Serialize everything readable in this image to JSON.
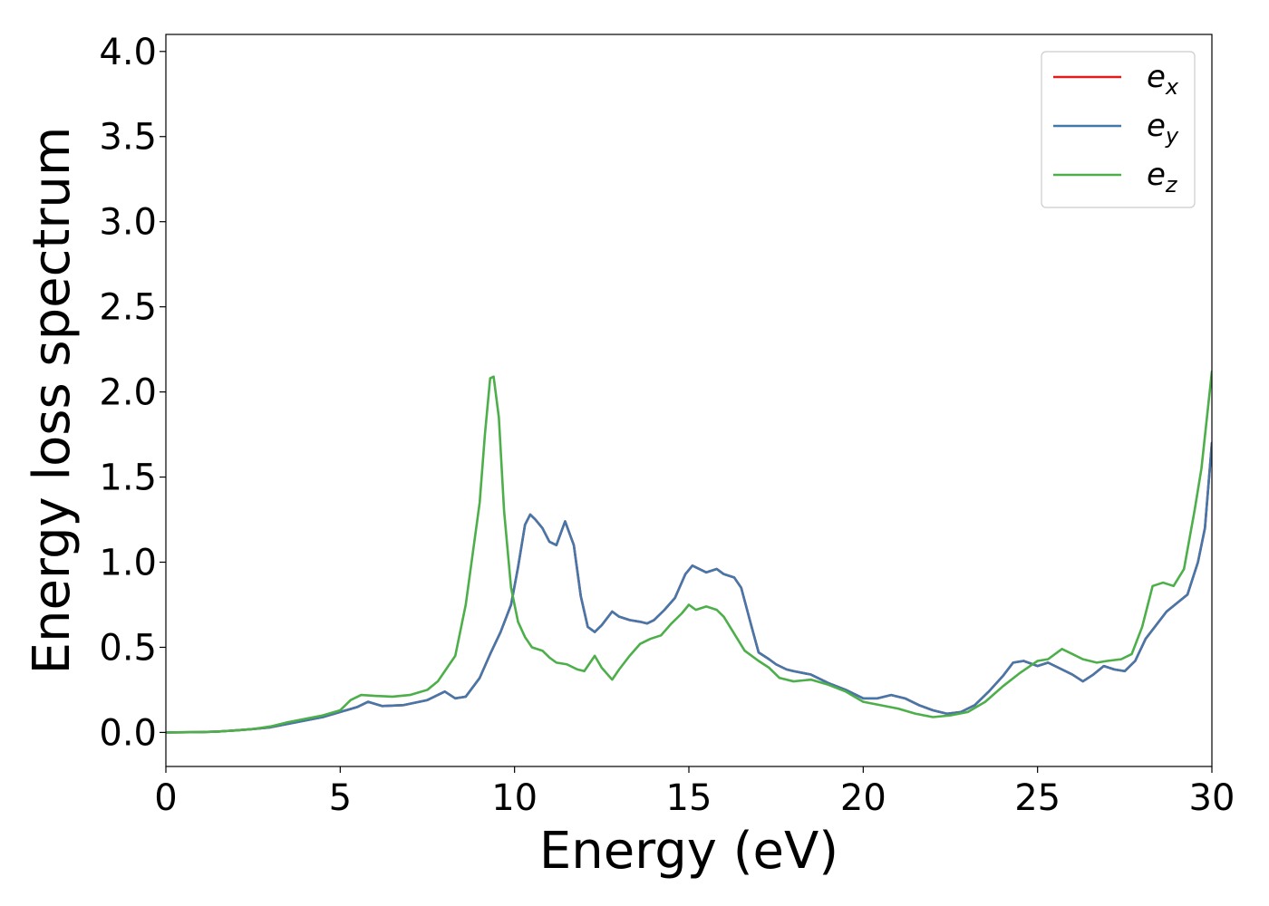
{
  "chart_data": {
    "type": "line",
    "title": "",
    "xlabel": "Energy (eV)",
    "ylabel": "Energy loss spectrum",
    "xlim": [
      0,
      30
    ],
    "ylim": [
      -0.2,
      4.1
    ],
    "xticks": [
      0,
      5,
      10,
      15,
      20,
      25,
      30
    ],
    "xtick_labels": [
      "0",
      "5",
      "10",
      "15",
      "20",
      "25",
      "30"
    ],
    "yticks": [
      0.0,
      0.5,
      1.0,
      1.5,
      2.0,
      2.5,
      3.0,
      3.5,
      4.0
    ],
    "ytick_labels": [
      "0.0",
      "0.5",
      "1.0",
      "1.5",
      "2.0",
      "2.5",
      "3.0",
      "3.5",
      "4.0"
    ],
    "grid": false,
    "legend": {
      "placement": "top-right"
    },
    "series": [
      {
        "name": "e_x",
        "label_base": "e",
        "label_sub": "x",
        "color": "#e41a1c",
        "x": [
          0,
          1,
          1.5,
          2,
          2.5,
          3,
          3.5,
          4,
          4.5,
          5,
          5.5,
          5.8,
          6.2,
          6.8,
          7.5,
          8,
          8.3,
          8.6,
          9,
          9.3,
          9.6,
          9.9,
          10.1,
          10.3,
          10.45,
          10.6,
          10.8,
          11,
          11.2,
          11.45,
          11.7,
          11.9,
          12.1,
          12.3,
          12.5,
          12.8,
          13,
          13.3,
          13.6,
          13.8,
          14,
          14.3,
          14.6,
          14.9,
          15.1,
          15.3,
          15.5,
          15.8,
          16,
          16.3,
          16.5,
          16.8,
          17,
          17.3,
          17.5,
          17.8,
          18,
          18.5,
          19,
          19.5,
          20,
          20.4,
          20.8,
          21.2,
          21.6,
          22,
          22.4,
          22.8,
          23.2,
          23.6,
          24,
          24.3,
          24.6,
          25,
          25.3,
          25.6,
          26,
          26.3,
          26.6,
          26.9,
          27.2,
          27.5,
          27.8,
          28.1,
          28.4,
          28.7,
          29,
          29.3,
          29.6,
          29.8,
          30
        ],
        "y": [
          0,
          0.002,
          0.005,
          0.012,
          0.02,
          0.03,
          0.05,
          0.07,
          0.09,
          0.12,
          0.15,
          0.18,
          0.155,
          0.16,
          0.19,
          0.24,
          0.2,
          0.21,
          0.32,
          0.46,
          0.59,
          0.75,
          0.97,
          1.22,
          1.28,
          1.25,
          1.2,
          1.12,
          1.1,
          1.24,
          1.1,
          0.8,
          0.62,
          0.59,
          0.63,
          0.71,
          0.68,
          0.66,
          0.65,
          0.64,
          0.66,
          0.72,
          0.79,
          0.93,
          0.98,
          0.96,
          0.94,
          0.96,
          0.93,
          0.91,
          0.85,
          0.62,
          0.47,
          0.43,
          0.4,
          0.37,
          0.36,
          0.34,
          0.29,
          0.25,
          0.2,
          0.2,
          0.22,
          0.2,
          0.16,
          0.13,
          0.11,
          0.12,
          0.16,
          0.24,
          0.33,
          0.41,
          0.42,
          0.39,
          0.41,
          0.38,
          0.34,
          0.3,
          0.34,
          0.39,
          0.37,
          0.36,
          0.42,
          0.55,
          0.63,
          0.71,
          0.76,
          0.81,
          1.0,
          1.2,
          1.7
        ]
      },
      {
        "name": "e_y",
        "label_base": "e",
        "label_sub": "y",
        "color": "#4477aa",
        "x": [
          0,
          1,
          1.5,
          2,
          2.5,
          3,
          3.5,
          4,
          4.5,
          5,
          5.5,
          5.8,
          6.2,
          6.8,
          7.5,
          8,
          8.3,
          8.6,
          9,
          9.3,
          9.6,
          9.9,
          10.1,
          10.3,
          10.45,
          10.6,
          10.8,
          11,
          11.2,
          11.45,
          11.7,
          11.9,
          12.1,
          12.3,
          12.5,
          12.8,
          13,
          13.3,
          13.6,
          13.8,
          14,
          14.3,
          14.6,
          14.9,
          15.1,
          15.3,
          15.5,
          15.8,
          16,
          16.3,
          16.5,
          16.8,
          17,
          17.3,
          17.5,
          17.8,
          18,
          18.5,
          19,
          19.5,
          20,
          20.4,
          20.8,
          21.2,
          21.6,
          22,
          22.4,
          22.8,
          23.2,
          23.6,
          24,
          24.3,
          24.6,
          25,
          25.3,
          25.6,
          26,
          26.3,
          26.6,
          26.9,
          27.2,
          27.5,
          27.8,
          28.1,
          28.4,
          28.7,
          29,
          29.3,
          29.6,
          29.8,
          30
        ],
        "y": [
          0,
          0.002,
          0.005,
          0.012,
          0.02,
          0.03,
          0.05,
          0.07,
          0.09,
          0.12,
          0.15,
          0.18,
          0.155,
          0.16,
          0.19,
          0.24,
          0.2,
          0.21,
          0.32,
          0.46,
          0.59,
          0.75,
          0.97,
          1.22,
          1.28,
          1.25,
          1.2,
          1.12,
          1.1,
          1.24,
          1.1,
          0.8,
          0.62,
          0.59,
          0.63,
          0.71,
          0.68,
          0.66,
          0.65,
          0.64,
          0.66,
          0.72,
          0.79,
          0.93,
          0.98,
          0.96,
          0.94,
          0.96,
          0.93,
          0.91,
          0.85,
          0.62,
          0.47,
          0.43,
          0.4,
          0.37,
          0.36,
          0.34,
          0.29,
          0.25,
          0.2,
          0.2,
          0.22,
          0.2,
          0.16,
          0.13,
          0.11,
          0.12,
          0.16,
          0.24,
          0.33,
          0.41,
          0.42,
          0.39,
          0.41,
          0.38,
          0.34,
          0.3,
          0.34,
          0.39,
          0.37,
          0.36,
          0.42,
          0.55,
          0.63,
          0.71,
          0.76,
          0.81,
          1.0,
          1.2,
          1.7
        ]
      },
      {
        "name": "e_z",
        "label_base": "e",
        "label_sub": "z",
        "color": "#4daf4a",
        "x": [
          0,
          1,
          1.5,
          2,
          2.5,
          3,
          3.5,
          4,
          4.5,
          5,
          5.3,
          5.6,
          6,
          6.5,
          7,
          7.5,
          7.8,
          8,
          8.3,
          8.6,
          8.8,
          9,
          9.15,
          9.3,
          9.4,
          9.55,
          9.7,
          9.9,
          10.1,
          10.3,
          10.5,
          10.8,
          11,
          11.2,
          11.5,
          11.8,
          12,
          12.3,
          12.5,
          12.8,
          13,
          13.3,
          13.6,
          13.9,
          14.2,
          14.5,
          14.8,
          15,
          15.2,
          15.5,
          15.8,
          16,
          16.3,
          16.6,
          17,
          17.3,
          17.6,
          18,
          18.5,
          19,
          19.5,
          20,
          20.5,
          21,
          21.5,
          22,
          22.5,
          23,
          23.5,
          24,
          24.5,
          25,
          25.3,
          25.7,
          26,
          26.3,
          26.7,
          27,
          27.4,
          27.7,
          28,
          28.3,
          28.6,
          28.9,
          29.2,
          29.5,
          29.7,
          30
        ],
        "y": [
          0,
          0.002,
          0.005,
          0.012,
          0.02,
          0.035,
          0.06,
          0.08,
          0.1,
          0.13,
          0.19,
          0.22,
          0.215,
          0.21,
          0.22,
          0.25,
          0.3,
          0.36,
          0.45,
          0.75,
          1.05,
          1.35,
          1.75,
          2.08,
          2.09,
          1.85,
          1.3,
          0.85,
          0.65,
          0.56,
          0.5,
          0.48,
          0.44,
          0.41,
          0.4,
          0.37,
          0.36,
          0.45,
          0.38,
          0.31,
          0.37,
          0.45,
          0.52,
          0.55,
          0.57,
          0.64,
          0.7,
          0.75,
          0.72,
          0.74,
          0.72,
          0.68,
          0.58,
          0.48,
          0.42,
          0.38,
          0.32,
          0.3,
          0.31,
          0.28,
          0.24,
          0.18,
          0.16,
          0.14,
          0.11,
          0.09,
          0.1,
          0.12,
          0.18,
          0.27,
          0.35,
          0.42,
          0.43,
          0.49,
          0.46,
          0.43,
          0.41,
          0.42,
          0.43,
          0.46,
          0.62,
          0.86,
          0.88,
          0.86,
          0.96,
          1.3,
          1.55,
          2.12
        ]
      }
    ]
  }
}
